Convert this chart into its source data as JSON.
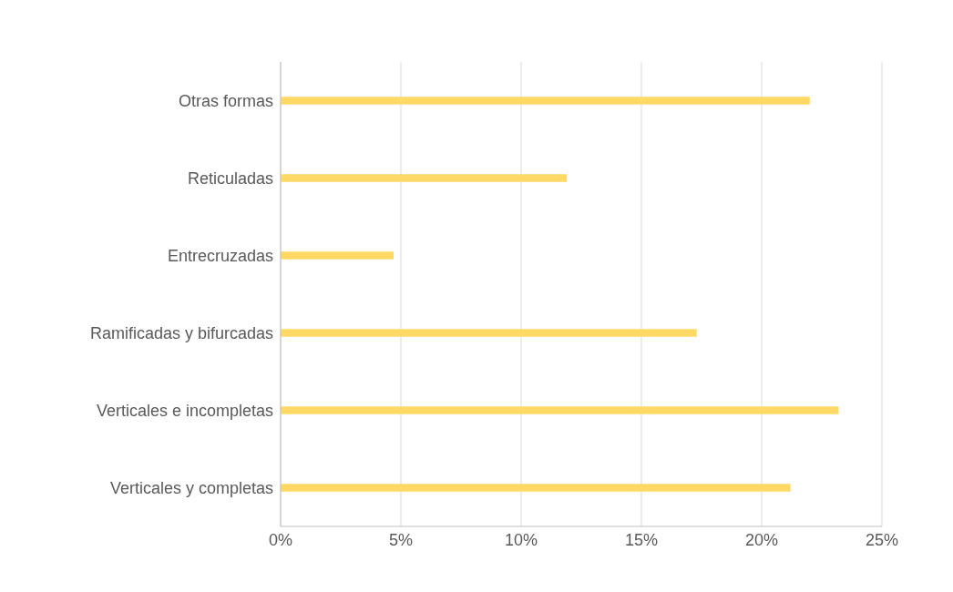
{
  "chart_data": {
    "type": "bar",
    "orientation": "horizontal",
    "categories": [
      "Otras formas",
      "Reticuladas",
      "Entrecruzadas",
      "Ramificadas y bifurcadas",
      "Verticales e incompletas",
      "Verticales y completas"
    ],
    "values": [
      22.0,
      11.9,
      4.7,
      17.3,
      23.2,
      21.2
    ],
    "color": "#ffd966",
    "xlim": [
      0,
      25
    ],
    "xticks": [
      {
        "value": 0,
        "label": "0%"
      },
      {
        "value": 5,
        "label": "5%"
      },
      {
        "value": 10,
        "label": "10%"
      },
      {
        "value": 15,
        "label": "15%"
      },
      {
        "value": 20,
        "label": "20%"
      },
      {
        "value": 25,
        "label": "25%"
      }
    ],
    "grid": "x"
  }
}
